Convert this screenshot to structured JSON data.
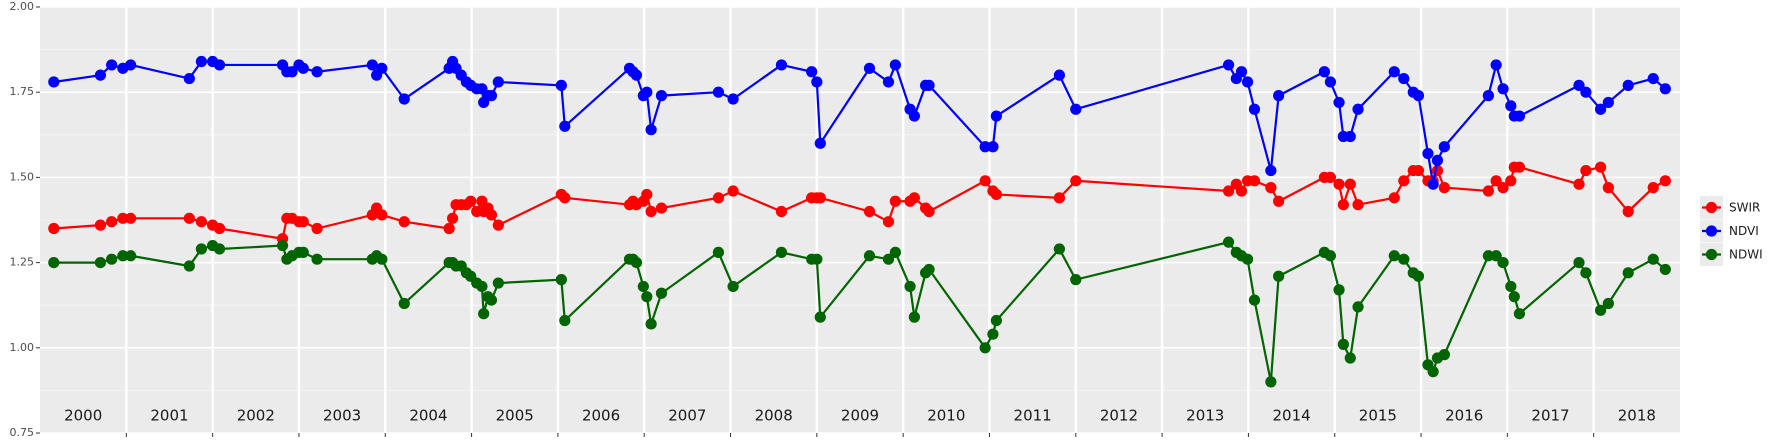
{
  "chart_data": {
    "type": "line",
    "x": [
      2000.16,
      2000.7,
      2000.83,
      2000.96,
      2001.05,
      2001.73,
      2001.87,
      2002.0,
      2002.08,
      2002.81,
      2002.86,
      2002.92,
      2003.0,
      2003.05,
      2003.21,
      2003.85,
      2003.9,
      2003.96,
      2004.22,
      2004.74,
      2004.78,
      2004.82,
      2004.88,
      2004.94,
      2004.99,
      2005.06,
      2005.12,
      2005.14,
      2005.19,
      2005.23,
      2005.31,
      2006.04,
      2006.08,
      2006.83,
      2006.87,
      2006.91,
      2006.99,
      2007.03,
      2007.08,
      2007.2,
      2007.86,
      2008.03,
      2008.59,
      2008.94,
      2009.0,
      2009.04,
      2009.61,
      2009.83,
      2009.91,
      2010.08,
      2010.13,
      2010.26,
      2010.3,
      2010.95,
      2011.04,
      2011.08,
      2011.81,
      2012.0,
      2013.77,
      2013.86,
      2013.92,
      2013.99,
      2014.07,
      2014.26,
      2014.35,
      2014.88,
      2014.95,
      2015.05,
      2015.1,
      2015.18,
      2015.27,
      2015.69,
      2015.8,
      2015.91,
      2015.97,
      2016.08,
      2016.14,
      2016.19,
      2016.27,
      2016.78,
      2016.87,
      2016.95,
      2017.04,
      2017.08,
      2017.14,
      2017.83,
      2017.91,
      2018.08,
      2018.17,
      2018.4,
      2018.69,
      2018.83
    ],
    "series": [
      {
        "name": "SWIR",
        "color": "#ff0000",
        "values": [
          1.35,
          1.36,
          1.37,
          1.38,
          1.38,
          1.38,
          1.37,
          1.36,
          1.35,
          1.32,
          1.38,
          1.38,
          1.37,
          1.37,
          1.35,
          1.39,
          1.41,
          1.39,
          1.37,
          1.35,
          1.38,
          1.42,
          1.42,
          1.42,
          1.43,
          1.4,
          1.43,
          1.4,
          1.41,
          1.39,
          1.36,
          1.45,
          1.44,
          1.42,
          1.43,
          1.42,
          1.43,
          1.45,
          1.4,
          1.41,
          1.44,
          1.46,
          1.4,
          1.44,
          1.44,
          1.44,
          1.4,
          1.37,
          1.43,
          1.43,
          1.44,
          1.41,
          1.4,
          1.49,
          1.46,
          1.45,
          1.44,
          1.49,
          1.46,
          1.48,
          1.46,
          1.49,
          1.49,
          1.47,
          1.43,
          1.5,
          1.5,
          1.48,
          1.42,
          1.48,
          1.42,
          1.44,
          1.49,
          1.52,
          1.52,
          1.49,
          1.49,
          1.52,
          1.47,
          1.46,
          1.49,
          1.47,
          1.49,
          1.53,
          1.53,
          1.48,
          1.52,
          1.53,
          1.47,
          1.4,
          1.47,
          1.49
        ]
      },
      {
        "name": "NDVI",
        "color": "#0000ff",
        "values": [
          1.78,
          1.8,
          1.83,
          1.82,
          1.83,
          1.79,
          1.84,
          1.84,
          1.83,
          1.83,
          1.81,
          1.81,
          1.83,
          1.82,
          1.81,
          1.83,
          1.8,
          1.82,
          1.73,
          1.82,
          1.84,
          1.82,
          1.8,
          1.78,
          1.77,
          1.76,
          1.76,
          1.72,
          1.74,
          1.74,
          1.78,
          1.77,
          1.65,
          1.82,
          1.81,
          1.8,
          1.74,
          1.75,
          1.64,
          1.74,
          1.75,
          1.73,
          1.83,
          1.81,
          1.78,
          1.6,
          1.82,
          1.78,
          1.83,
          1.7,
          1.68,
          1.77,
          1.77,
          1.59,
          1.59,
          1.68,
          1.8,
          1.7,
          1.83,
          1.79,
          1.81,
          1.78,
          1.7,
          1.52,
          1.74,
          1.81,
          1.78,
          1.72,
          1.62,
          1.62,
          1.7,
          1.81,
          1.79,
          1.75,
          1.74,
          1.57,
          1.48,
          1.55,
          1.59,
          1.74,
          1.83,
          1.76,
          1.71,
          1.68,
          1.68,
          1.77,
          1.75,
          1.7,
          1.72,
          1.77,
          1.79,
          1.76
        ]
      },
      {
        "name": "NDWI",
        "color": "#006400",
        "values": [
          1.25,
          1.25,
          1.26,
          1.27,
          1.27,
          1.24,
          1.29,
          1.3,
          1.29,
          1.3,
          1.26,
          1.27,
          1.28,
          1.28,
          1.26,
          1.26,
          1.27,
          1.26,
          1.13,
          1.25,
          1.25,
          1.24,
          1.24,
          1.22,
          1.21,
          1.19,
          1.18,
          1.1,
          1.15,
          1.14,
          1.19,
          1.2,
          1.08,
          1.26,
          1.26,
          1.25,
          1.18,
          1.15,
          1.07,
          1.16,
          1.28,
          1.18,
          1.28,
          1.26,
          1.26,
          1.09,
          1.27,
          1.26,
          1.28,
          1.18,
          1.09,
          1.22,
          1.23,
          1.0,
          1.04,
          1.08,
          1.29,
          1.2,
          1.31,
          1.28,
          1.27,
          1.26,
          1.14,
          0.9,
          1.21,
          1.28,
          1.27,
          1.17,
          1.01,
          0.97,
          1.12,
          1.27,
          1.26,
          1.22,
          1.21,
          0.95,
          0.93,
          0.97,
          0.98,
          1.27,
          1.27,
          1.25,
          1.18,
          1.15,
          1.1,
          1.25,
          1.22,
          1.11,
          1.13,
          1.22,
          1.26,
          1.23
        ]
      }
    ],
    "xlim": [
      2000,
      2019
    ],
    "xticks": [
      2001,
      2002,
      2003,
      2004,
      2005,
      2006,
      2007,
      2008,
      2009,
      2010,
      2011,
      2012,
      2013,
      2014,
      2015,
      2016,
      2017,
      2018
    ],
    "year_labels": [
      "2000",
      "2001",
      "2002",
      "2003",
      "2004",
      "2005",
      "2006",
      "2007",
      "2008",
      "2009",
      "2010",
      "2011",
      "2012",
      "2013",
      "2014",
      "2015",
      "2016",
      "2017",
      "2018"
    ],
    "ylim": [
      0.75,
      2.0
    ],
    "yticks": [
      {
        "value": 0.75,
        "label": "0.75"
      },
      {
        "value": 1.0,
        "label": "1.00"
      },
      {
        "value": 1.25,
        "label": "1.25"
      },
      {
        "value": 1.5,
        "label": "1.50"
      },
      {
        "value": 1.75,
        "label": "1.75"
      },
      {
        "value": 2.0,
        "label": "2.00"
      }
    ],
    "grid": true,
    "legend": "right"
  }
}
